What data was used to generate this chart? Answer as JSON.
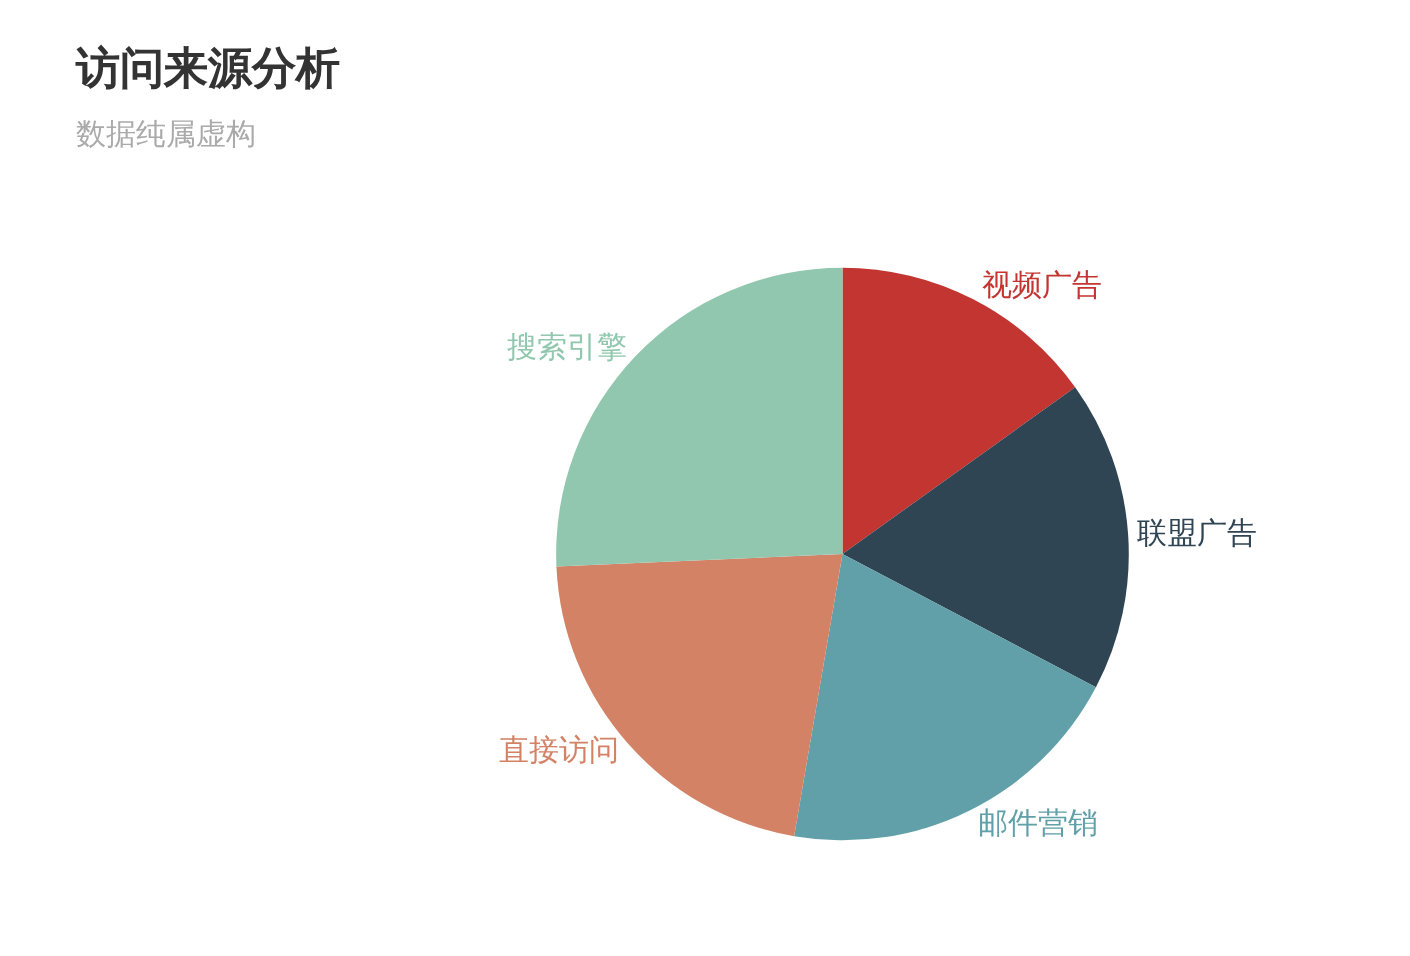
{
  "chart_data": {
    "type": "pie",
    "title": "访问来源分析",
    "subtitle": "数据纯属虚构",
    "categories": [
      "视频广告",
      "联盟广告",
      "邮件营销",
      "直接访问",
      "搜索引擎"
    ],
    "values": [
      15.1,
      17.6,
      20.0,
      21.6,
      25.7
    ],
    "colors": [
      "#c23531",
      "#2f4554",
      "#61a0a8",
      "#d48265",
      "#91c7ae"
    ]
  }
}
